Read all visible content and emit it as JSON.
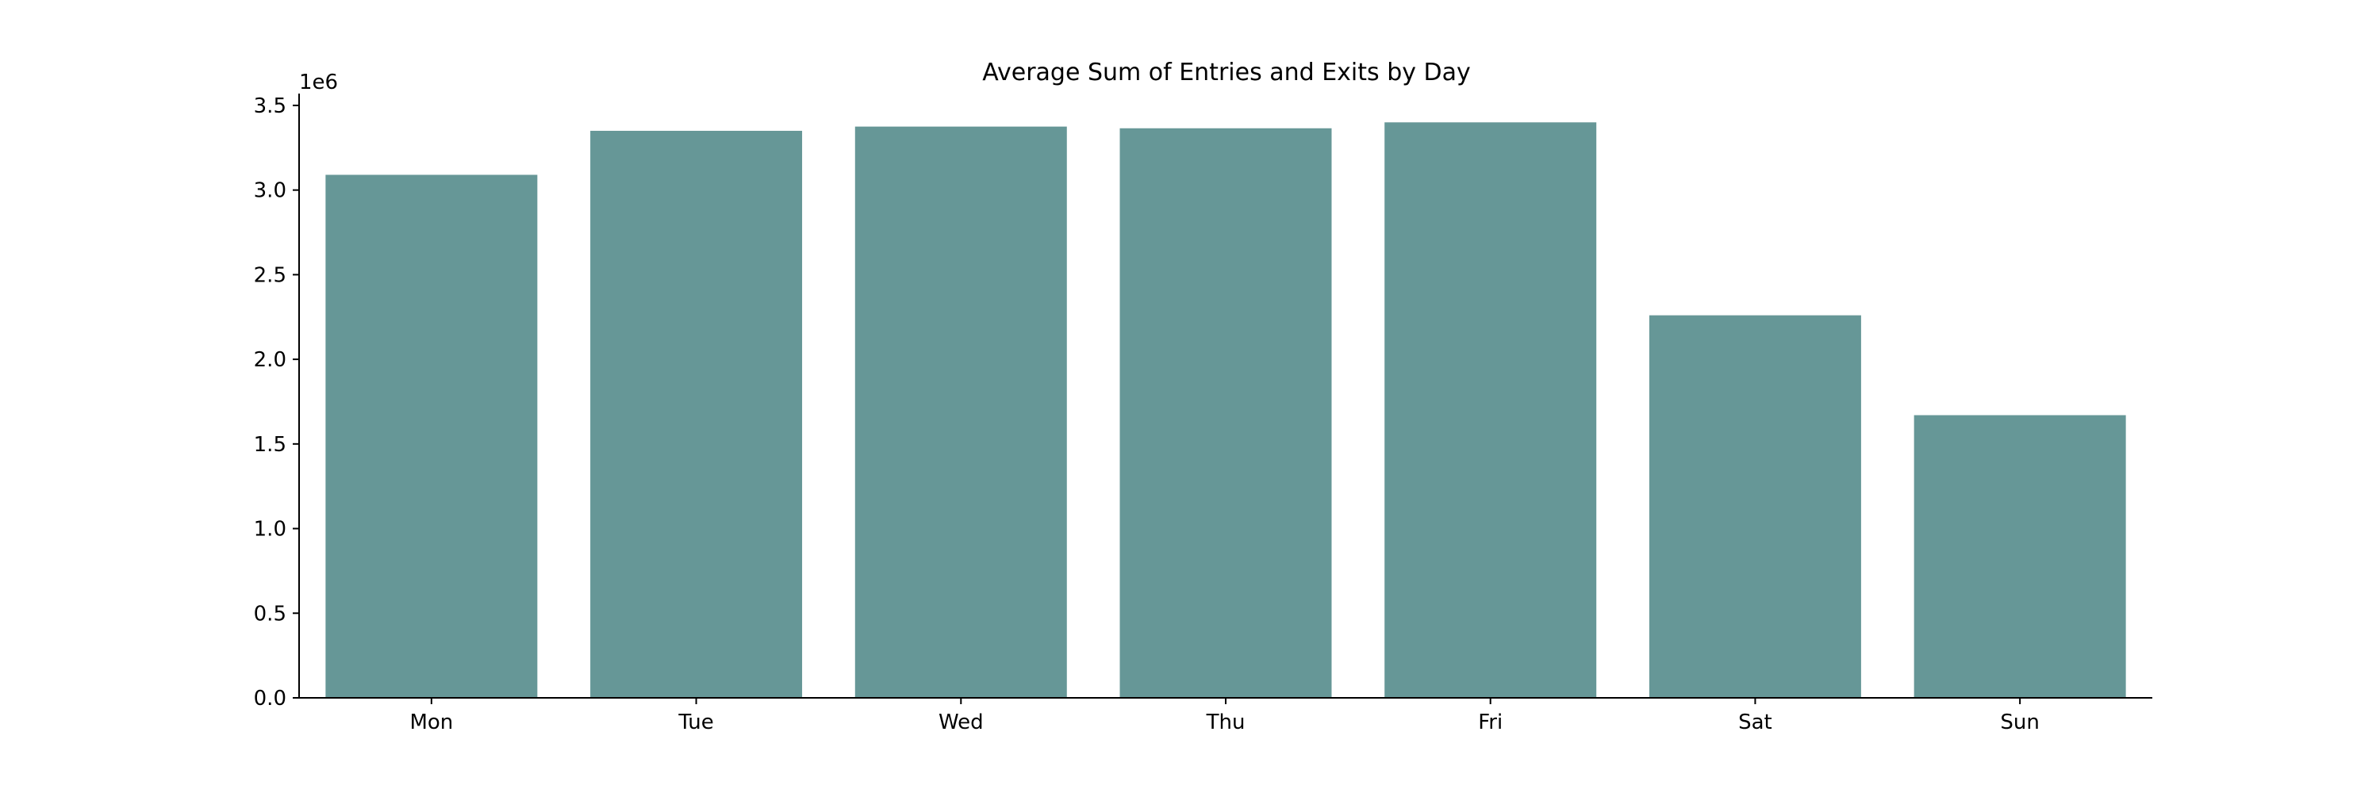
{
  "chart_data": {
    "type": "bar",
    "title": "Average Sum of Entries and Exits by Day",
    "xlabel": "",
    "ylabel": "",
    "categories": [
      "Mon",
      "Tue",
      "Wed",
      "Thu",
      "Fri",
      "Sat",
      "Sun"
    ],
    "values": [
      3090000,
      3350000,
      3375000,
      3365000,
      3400000,
      2260000,
      1670000
    ],
    "ylim": [
      0,
      3570000
    ],
    "yticks": [
      0,
      500000,
      1000000,
      1500000,
      2000000,
      2500000,
      3000000,
      3500000
    ],
    "ytick_labels": [
      "0.0",
      "0.5",
      "1.0",
      "1.5",
      "2.0",
      "2.5",
      "3.0",
      "3.5"
    ],
    "y_offset_label": "1e6",
    "bar_color": "#669797",
    "grid": false
  }
}
